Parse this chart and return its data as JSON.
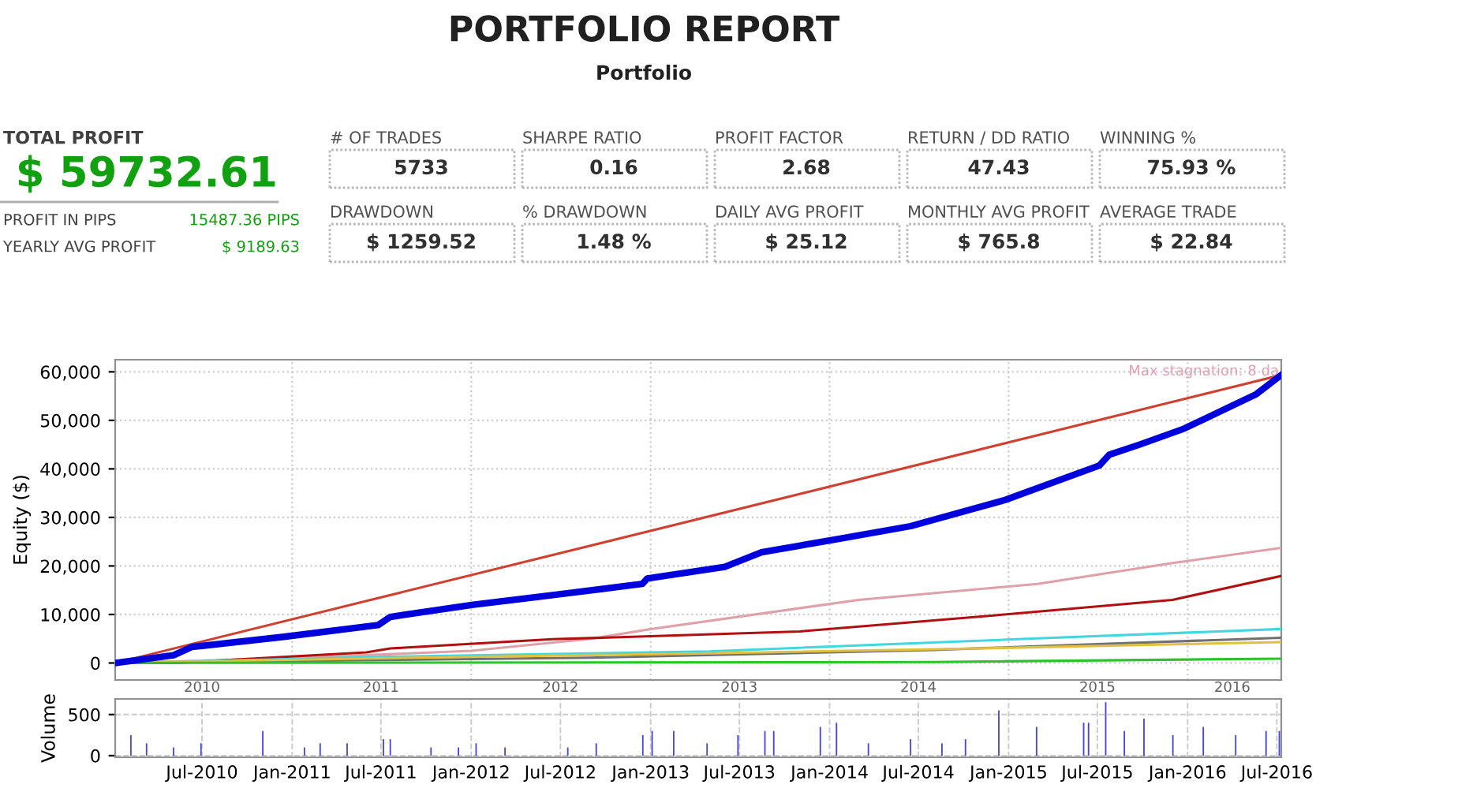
{
  "chart_data": [
    {
      "type": "other",
      "title": "PORTFOLIO REPORT",
      "subtitle": "Portfolio",
      "annotations": [
        "TOTAL PROFIT",
        "$ 59732.61",
        "PROFIT IN PIPS",
        "15487.36 PIPS",
        "YEARLY AVG PROFIT",
        "$ 9189.63",
        "# OF TRADES",
        "5733",
        "SHARPE RATIO",
        "0.16",
        "PROFIT FACTOR",
        "2.68",
        "RETURN / DD RATIO",
        "47.43",
        "WINNING %",
        "75.93 %",
        "DRAWDOWN",
        "$ 1259.52",
        "% DRAWDOWN",
        "1.48 %",
        "DAILY AVG PROFIT",
        "$ 25.12",
        "MONTHLY AVG PROFIT",
        "$ 765.8",
        "AVERAGE TRADE",
        "$ 22.84"
      ]
    },
    {
      "type": "line",
      "ylabel": "Equity ($)",
      "xlim": [
        "2010-01-05",
        "2016-07-10"
      ],
      "ylim": [
        -3500,
        62500
      ],
      "yticks": [
        {
          "value": 0,
          "label": "0"
        },
        {
          "value": 10000,
          "label": "10,000"
        },
        {
          "value": 20000,
          "label": "20,000"
        },
        {
          "value": 30000,
          "label": "30,000"
        },
        {
          "value": 40000,
          "label": "40,000"
        },
        {
          "value": 50000,
          "label": "50,000"
        },
        {
          "value": 60000,
          "label": "60,000"
        }
      ],
      "xticks": [
        {
          "value": "2011-01-01",
          "label": null
        },
        {
          "value": "2012-01-01",
          "label": null
        },
        {
          "value": "2013-01-01",
          "label": null
        },
        {
          "value": "2014-01-01",
          "label": null
        },
        {
          "value": "2015-01-01",
          "label": null
        },
        {
          "value": "2016-01-01",
          "label": null
        },
        {
          "value": "2010-07-01",
          "label": "2010"
        },
        {
          "value": "2011-07-01",
          "label": "2011"
        },
        {
          "value": "2012-07-01",
          "label": "2012"
        },
        {
          "value": "2013-07-01",
          "label": "2013"
        },
        {
          "value": "2014-07-01",
          "label": "2014"
        },
        {
          "value": "2015-07-01",
          "label": "2015"
        },
        {
          "value": "2016-04-01",
          "label": "2016"
        }
      ],
      "grid": true,
      "annotations": [
        "Max stagnation: 8 da"
      ],
      "series": [
        {
          "color": "#d04030",
          "x": [
            "2010-01-05",
            "2016-07-08"
          ],
          "values": [
            0,
            59300
          ]
        },
        {
          "color": "#e0a0a8",
          "x": [
            "2010-01-05",
            "2011-01-01",
            "2012-01-01",
            "2012-09-01",
            "2013-01-01",
            "2014-03-01",
            "2015-03-01",
            "2015-12-01",
            "2016-07-08"
          ],
          "values": [
            0,
            1000,
            2500,
            5000,
            7000,
            13000,
            16300,
            20600,
            23700
          ]
        },
        {
          "color": "#b01010",
          "x": [
            "2010-01-05",
            "2010-05-04",
            "2011-06-01",
            "2011-07-20",
            "2012-06-15",
            "2013-06-01",
            "2013-11-01",
            "2014-12-01",
            "2015-12-01",
            "2016-07-08"
          ],
          "values": [
            0,
            0,
            2200,
            3000,
            4900,
            6000,
            6500,
            9800,
            13000,
            17900
          ]
        },
        {
          "color": "#40d8e0",
          "x": [
            "2010-01-05",
            "2011-07-20",
            "2013-05-01",
            "2014-11-01",
            "2016-07-08"
          ],
          "values": [
            0,
            1300,
            2400,
            4600,
            7000
          ]
        },
        {
          "color": "#707070",
          "x": [
            "2010-01-05",
            "2012-09-01",
            "2014-08-01",
            "2016-07-08"
          ],
          "values": [
            0,
            1100,
            2700,
            5200
          ]
        },
        {
          "color": "#e0c040",
          "x": [
            "2010-01-05",
            "2011-09-01",
            "2013-05-01",
            "2014-11-01",
            "2016-07-08"
          ],
          "values": [
            0,
            1100,
            2000,
            3000,
            4300
          ]
        },
        {
          "color": "#30c030",
          "x": [
            "2010-01-05",
            "2014-08-01",
            "2016-07-08"
          ],
          "values": [
            0,
            200,
            900
          ]
        },
        {
          "color": "#0000dd",
          "x": [
            "2010-01-05",
            "2010-05-04",
            "2010-06-10",
            "2010-12-15",
            "2011-06-25",
            "2011-07-20",
            "2012-01-05",
            "2012-06-25",
            "2012-12-15",
            "2012-12-25",
            "2013-06-01",
            "2013-08-15",
            "2014-01-15",
            "2014-06-15",
            "2014-12-25",
            "2015-07-05",
            "2015-07-25",
            "2015-09-25",
            "2015-12-25",
            "2016-05-20",
            "2016-07-08"
          ],
          "values": [
            0,
            1600,
            3300,
            5400,
            7800,
            9500,
            12000,
            14100,
            16300,
            17400,
            19800,
            22800,
            25500,
            28200,
            33600,
            40700,
            42900,
            45000,
            48300,
            55400,
            59200
          ]
        }
      ]
    },
    {
      "type": "bar",
      "ylabel": "Volume",
      "xlim": [
        "2010-01-05",
        "2016-07-10"
      ],
      "ylim": [
        -20,
        690
      ],
      "yticks": [
        0,
        500
      ],
      "color": "#4848d8",
      "grid": true,
      "xticks": [
        {
          "value": "2010-07-01",
          "label": "Jul-2010"
        },
        {
          "value": "2011-01-01",
          "label": "Jan-2011"
        },
        {
          "value": "2011-07-01",
          "label": "Jul-2011"
        },
        {
          "value": "2012-01-01",
          "label": "Jan-2012"
        },
        {
          "value": "2012-07-01",
          "label": "Jul-2012"
        },
        {
          "value": "2013-01-01",
          "label": "Jan-2013"
        },
        {
          "value": "2013-07-01",
          "label": "Jul-2013"
        },
        {
          "value": "2014-01-01",
          "label": "Jan-2014"
        },
        {
          "value": "2014-07-01",
          "label": "Jul-2014"
        },
        {
          "value": "2015-01-01",
          "label": "Jan-2015"
        },
        {
          "value": "2015-07-01",
          "label": "Jul-2015"
        },
        {
          "value": "2016-01-01",
          "label": "Jan-2016"
        },
        {
          "value": "2016-07-01",
          "label": "Jul-2016"
        }
      ],
      "x": [
        "2010-02-06",
        "2010-03-10",
        "2010-05-04",
        "2010-06-29",
        "2010-11-02",
        "2011-01-26",
        "2011-02-27",
        "2011-04-23",
        "2011-07-06",
        "2011-07-20",
        "2011-10-11",
        "2011-12-06",
        "2012-01-11",
        "2012-03-10",
        "2012-07-16",
        "2012-09-12",
        "2012-12-16",
        "2013-01-04",
        "2013-02-17",
        "2013-04-26",
        "2013-06-28",
        "2013-08-22",
        "2013-09-09",
        "2013-12-13",
        "2014-01-15",
        "2014-03-21",
        "2014-06-15",
        "2014-08-18",
        "2014-10-05",
        "2014-12-12",
        "2015-02-27",
        "2015-06-03",
        "2015-06-13",
        "2015-07-18",
        "2015-08-25",
        "2015-10-04",
        "2015-12-02",
        "2016-02-02",
        "2016-04-08",
        "2016-06-09",
        "2016-07-06"
      ],
      "values": [
        250,
        150,
        100,
        150,
        300,
        100,
        150,
        150,
        200,
        200,
        100,
        100,
        150,
        100,
        100,
        150,
        250,
        300,
        300,
        150,
        250,
        300,
        300,
        350,
        400,
        150,
        200,
        150,
        200,
        550,
        350,
        400,
        400,
        650,
        300,
        450,
        250,
        350,
        250,
        300,
        300
      ]
    }
  ]
}
